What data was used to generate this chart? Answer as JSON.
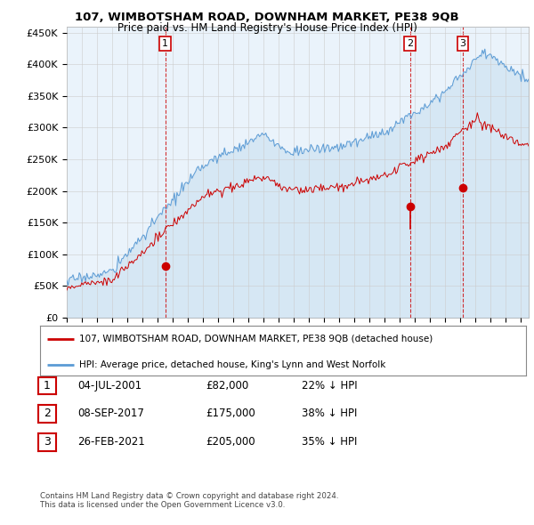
{
  "title_line1": "107, WIMBOTSHAM ROAD, DOWNHAM MARKET, PE38 9QB",
  "title_line2": "Price paid vs. HM Land Registry's House Price Index (HPI)",
  "ylabel_ticks": [
    "£0",
    "£50K",
    "£100K",
    "£150K",
    "£200K",
    "£250K",
    "£300K",
    "£350K",
    "£400K",
    "£450K"
  ],
  "ytick_values": [
    0,
    50000,
    100000,
    150000,
    200000,
    250000,
    300000,
    350000,
    400000,
    450000
  ],
  "ylim": [
    0,
    460000
  ],
  "xlim_start": 1995.0,
  "xlim_end": 2025.5,
  "hpi_color": "#5b9bd5",
  "hpi_fill_color": "#ddeeff",
  "price_color": "#cc0000",
  "dashed_line_color": "#cc0000",
  "sale_dates": [
    2001.5,
    2017.67,
    2021.15
  ],
  "sale_prices": [
    82000,
    175000,
    205000
  ],
  "sale_labels": [
    "1",
    "2",
    "3"
  ],
  "legend_line1": "107, WIMBOTSHAM ROAD, DOWNHAM MARKET, PE38 9QB (detached house)",
  "legend_line2": "HPI: Average price, detached house, King's Lynn and West Norfolk",
  "table_rows": [
    {
      "num": "1",
      "date": "04-JUL-2001",
      "price": "£82,000",
      "pct": "22% ↓ HPI"
    },
    {
      "num": "2",
      "date": "08-SEP-2017",
      "price": "£175,000",
      "pct": "38% ↓ HPI"
    },
    {
      "num": "3",
      "date": "26-FEB-2021",
      "price": "£205,000",
      "pct": "35% ↓ HPI"
    }
  ],
  "footnote_line1": "Contains HM Land Registry data © Crown copyright and database right 2024.",
  "footnote_line2": "This data is licensed under the Open Government Licence v3.0.",
  "background_color": "#ffffff",
  "plot_bg_color": "#ffffff",
  "grid_color": "#cccccc"
}
